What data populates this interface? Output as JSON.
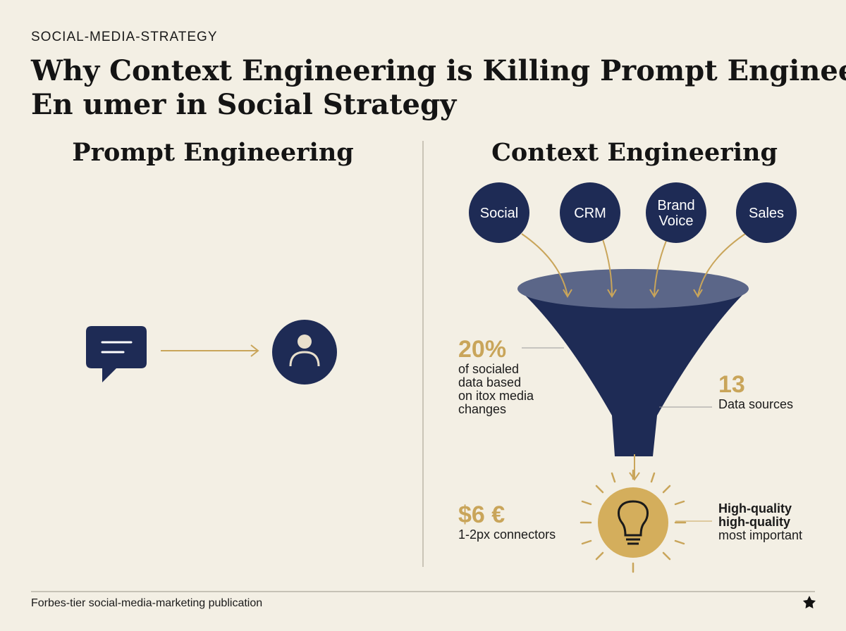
{
  "kicker": "SOCIAL-MEDIA-STRATEGY",
  "title": [
    "Why Context Engineering is Killing Prompt Engineer",
    "En umer in Social Strategy"
  ],
  "left": {
    "heading": "Prompt Engineering"
  },
  "right": {
    "heading": "Context Engineering",
    "sources": [
      [
        "Social"
      ],
      [
        "CRM"
      ],
      [
        "Brand",
        "Voice"
      ],
      [
        "Sales"
      ]
    ],
    "stats": [
      {
        "value": "20%",
        "lines": [
          "of socialed",
          "data based",
          "on itox media",
          "changes"
        ]
      },
      {
        "value": "13",
        "lines": [
          "Data sources"
        ]
      },
      {
        "value": "$6 €",
        "lines": [
          "1-2px connectors"
        ]
      },
      {
        "lines": [
          "High-quality",
          "high-quality",
          "most important"
        ]
      }
    ]
  },
  "footer": "Forbes-tier social-media-marketing publication"
}
